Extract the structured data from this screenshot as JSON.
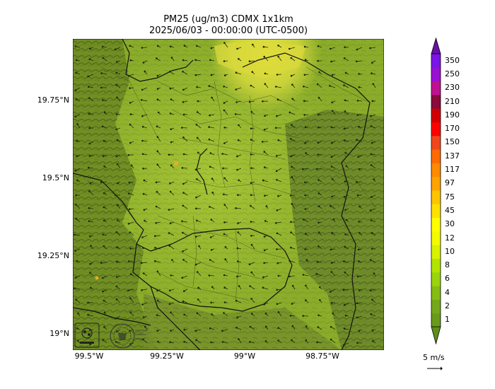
{
  "title": {
    "line1": "PM25 (ug/m3) CDMX 1x1km",
    "line2": "2025/06/03 - 00:00:00 (UTC-0500)"
  },
  "map": {
    "y_ticks": [
      "19.75°N",
      "19.5°N",
      "19.25°N",
      "19°N"
    ],
    "x_ticks": [
      "99.5°W",
      "99.25°W",
      "99°W",
      "98.75°W"
    ],
    "logos": [
      "sedema-logo",
      "cdmx-seal"
    ]
  },
  "colorbar": {
    "levels": [
      "1",
      "2",
      "4",
      "6",
      "8",
      "10",
      "12",
      "30",
      "45",
      "75",
      "97",
      "117",
      "137",
      "150",
      "170",
      "190",
      "210",
      "230",
      "250",
      "350"
    ],
    "colors": [
      "#6a9a1a",
      "#74a81a",
      "#86bd12",
      "#9ad40c",
      "#b2e400",
      "#d8f200",
      "#f2fb00",
      "#ffff00",
      "#ffe100",
      "#ffc400",
      "#ffa300",
      "#ff8a00",
      "#ff6a00",
      "#f0461c",
      "#ff0000",
      "#d10000",
      "#8a0a3a",
      "#c0108f",
      "#9a10d2",
      "#7a14e8"
    ],
    "extend_min_color": "#5f8f18",
    "extend_max_color": "#6a10a8"
  },
  "wind": {
    "reference_label": "5 m/s"
  }
}
